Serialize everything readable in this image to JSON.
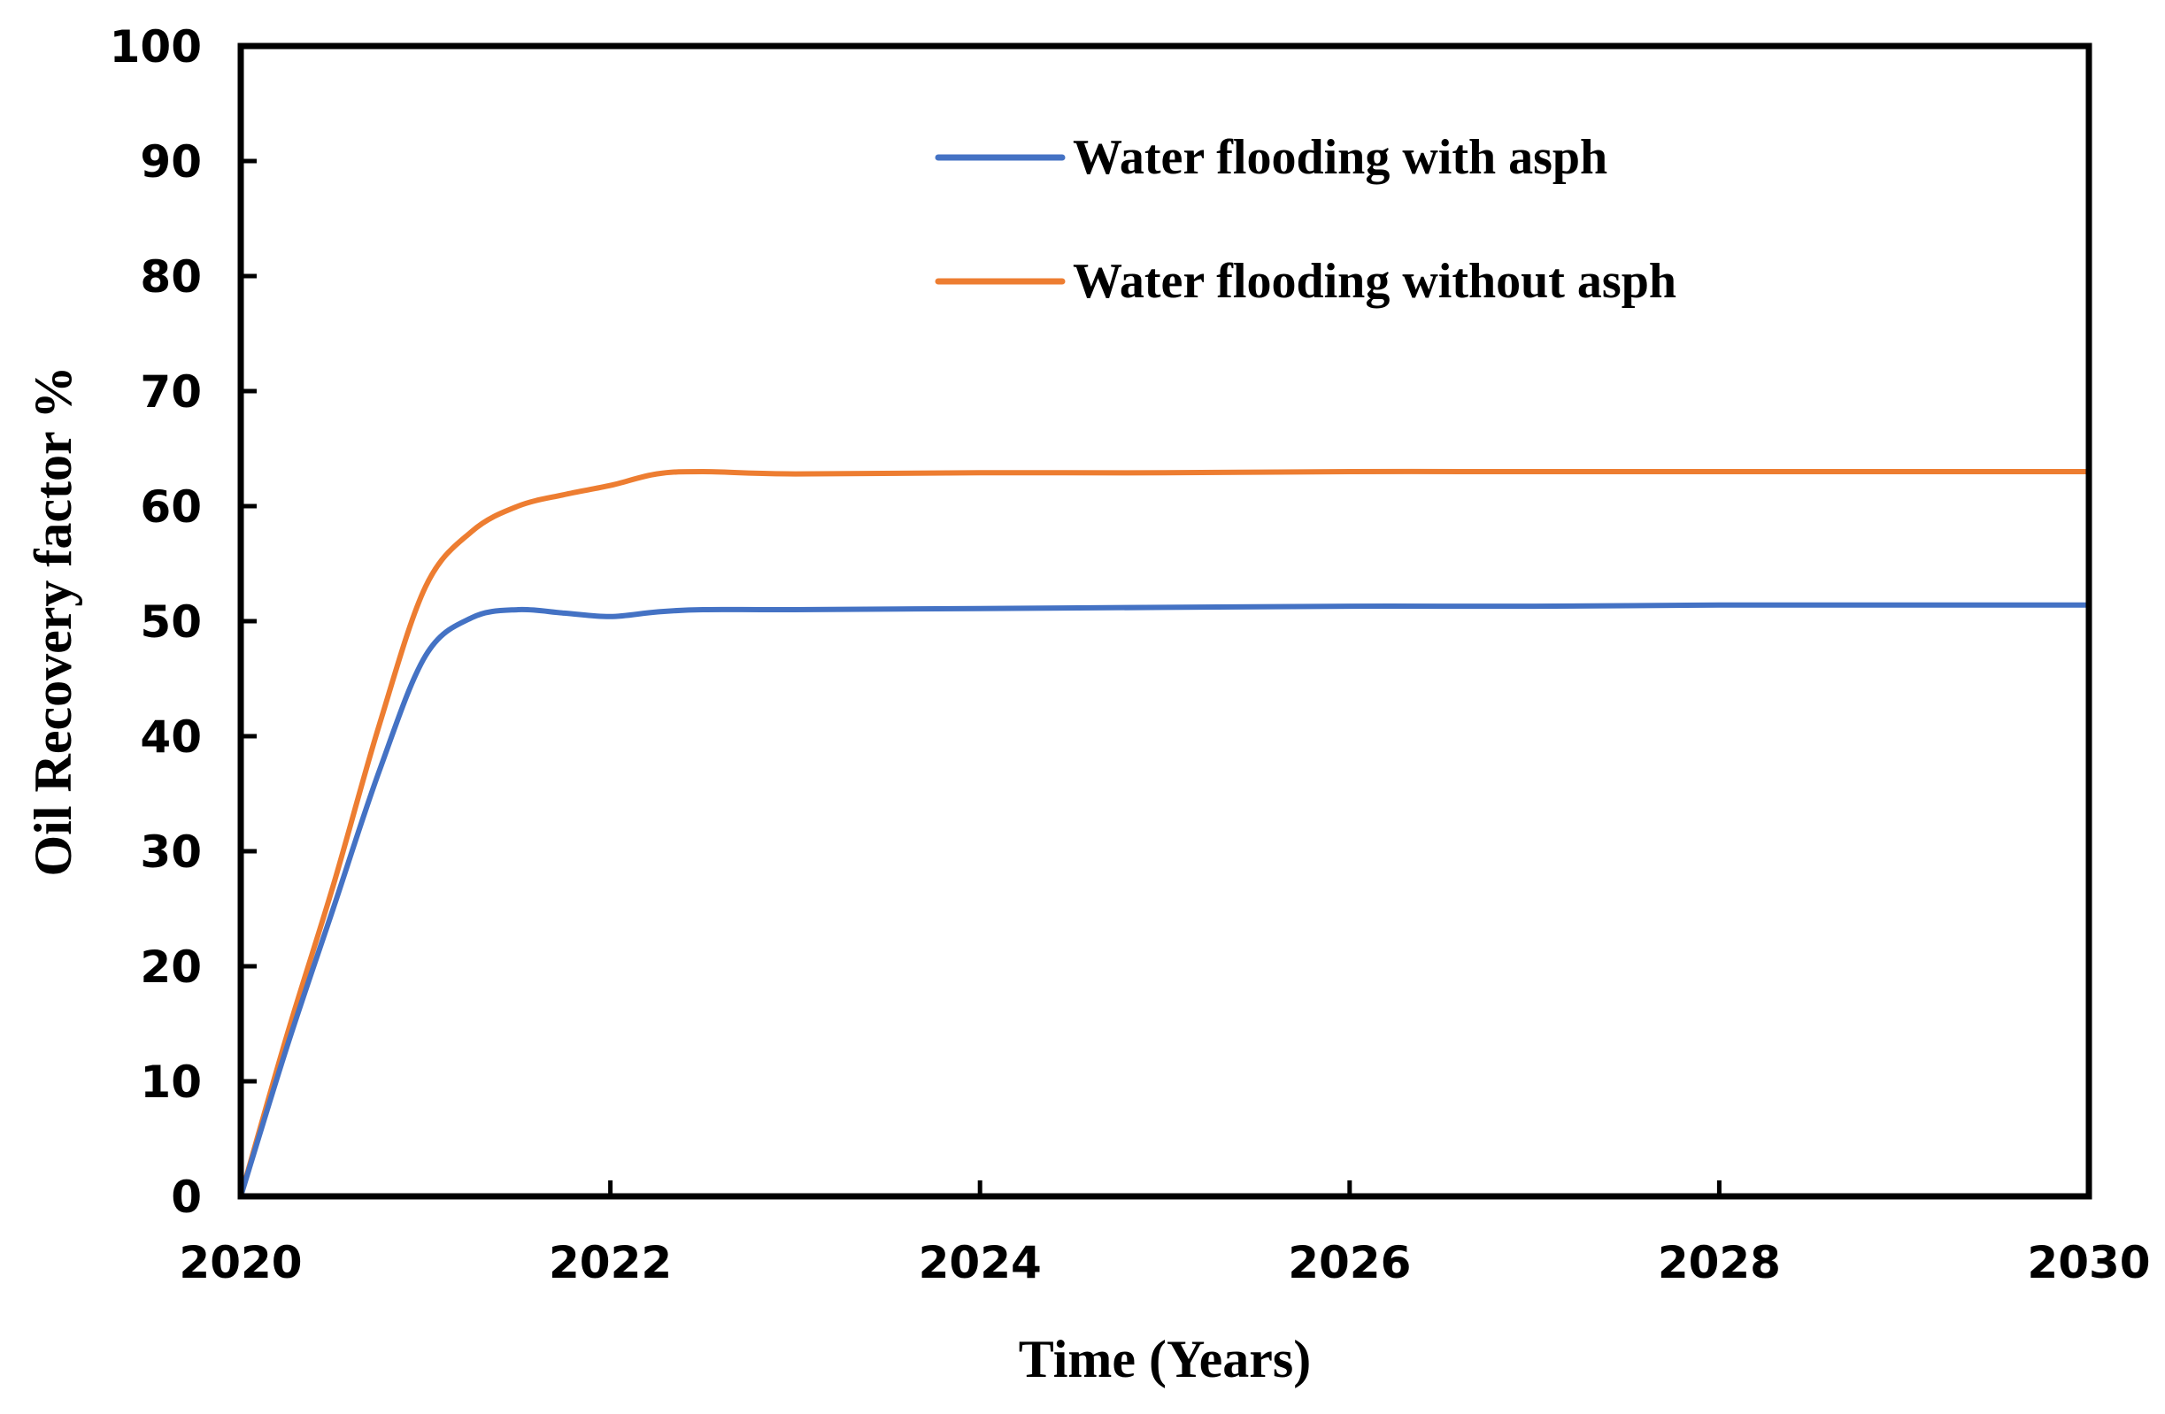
{
  "chart_data": {
    "type": "line",
    "title": "",
    "xlabel": "Time (Years)",
    "ylabel": "Oil Recovery factor %",
    "xlim": [
      2020,
      2030
    ],
    "ylim": [
      0,
      100
    ],
    "x_ticks": [
      "2020",
      "2022",
      "2024",
      "2026",
      "2028",
      "2030"
    ],
    "y_ticks": [
      "0",
      "10",
      "20",
      "30",
      "40",
      "50",
      "60",
      "70",
      "80",
      "90",
      "100"
    ],
    "grid": false,
    "legend_position": "top-center",
    "series": [
      {
        "name": "Water flooding with asph",
        "color": "#4472C4",
        "x": [
          2020,
          2020.25,
          2020.5,
          2020.75,
          2021,
          2021.25,
          2021.5,
          2021.75,
          2022,
          2022.25,
          2022.5,
          2023,
          2024,
          2025,
          2026,
          2027,
          2028,
          2029,
          2030
        ],
        "y": [
          0,
          13,
          25,
          37,
          47,
          50.3,
          51,
          50.7,
          50.4,
          50.8,
          51,
          51,
          51.1,
          51.2,
          51.3,
          51.3,
          51.4,
          51.4,
          51.4
        ]
      },
      {
        "name": "Water flooding without asph",
        "color": "#ED7D31",
        "x": [
          2020,
          2020.25,
          2020.5,
          2020.75,
          2021,
          2021.25,
          2021.5,
          2021.75,
          2022,
          2022.25,
          2022.5,
          2023,
          2024,
          2025,
          2026,
          2027,
          2028,
          2029,
          2030
        ],
        "y": [
          0,
          14,
          27,
          41,
          53,
          57.8,
          60,
          61,
          61.8,
          62.8,
          63,
          62.8,
          62.9,
          62.9,
          63,
          63,
          63,
          63,
          63
        ]
      }
    ]
  }
}
